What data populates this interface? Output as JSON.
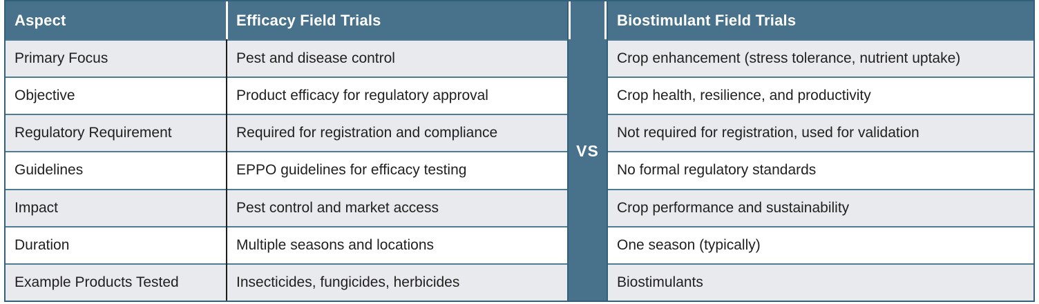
{
  "table": {
    "columns": {
      "aspect": "Aspect",
      "efficacy": "Efficacy Field Trials",
      "biostimulant": "Biostimulant Field Trials"
    },
    "divider_label": "VS",
    "rows": [
      {
        "aspect": "Primary Focus",
        "efficacy": "Pest and disease control",
        "biostimulant": "Crop enhancement (stress tolerance, nutrient uptake)"
      },
      {
        "aspect": "Objective",
        "efficacy": "Product efficacy for regulatory approval",
        "biostimulant": "Crop health, resilience, and productivity"
      },
      {
        "aspect": "Regulatory Requirement",
        "efficacy": "Required for registration and compliance",
        "biostimulant": "Not required for registration, used for validation"
      },
      {
        "aspect": "Guidelines",
        "efficacy": "EPPO guidelines for efficacy testing",
        "biostimulant": "No formal regulatory standards"
      },
      {
        "aspect": "Impact",
        "efficacy": "Pest control and market access",
        "biostimulant": "Crop performance and sustainability"
      },
      {
        "aspect": "Duration",
        "efficacy": "Multiple seasons and locations",
        "biostimulant": "One season (typically)"
      },
      {
        "aspect": "Example Products Tested",
        "efficacy": "Insecticides, fungicides, herbicides",
        "biostimulant": "Biostimulants"
      }
    ],
    "colors": {
      "header_bg": "#48728c",
      "outer_border": "#325f7a",
      "row_divider": "#4d7b96",
      "body_column_divider": "#1c1c1c",
      "alt_row_bg": "#e8eaee",
      "row_bg": "#ffffff",
      "header_text": "#ffffff",
      "body_text": "#1f1f1f"
    }
  }
}
